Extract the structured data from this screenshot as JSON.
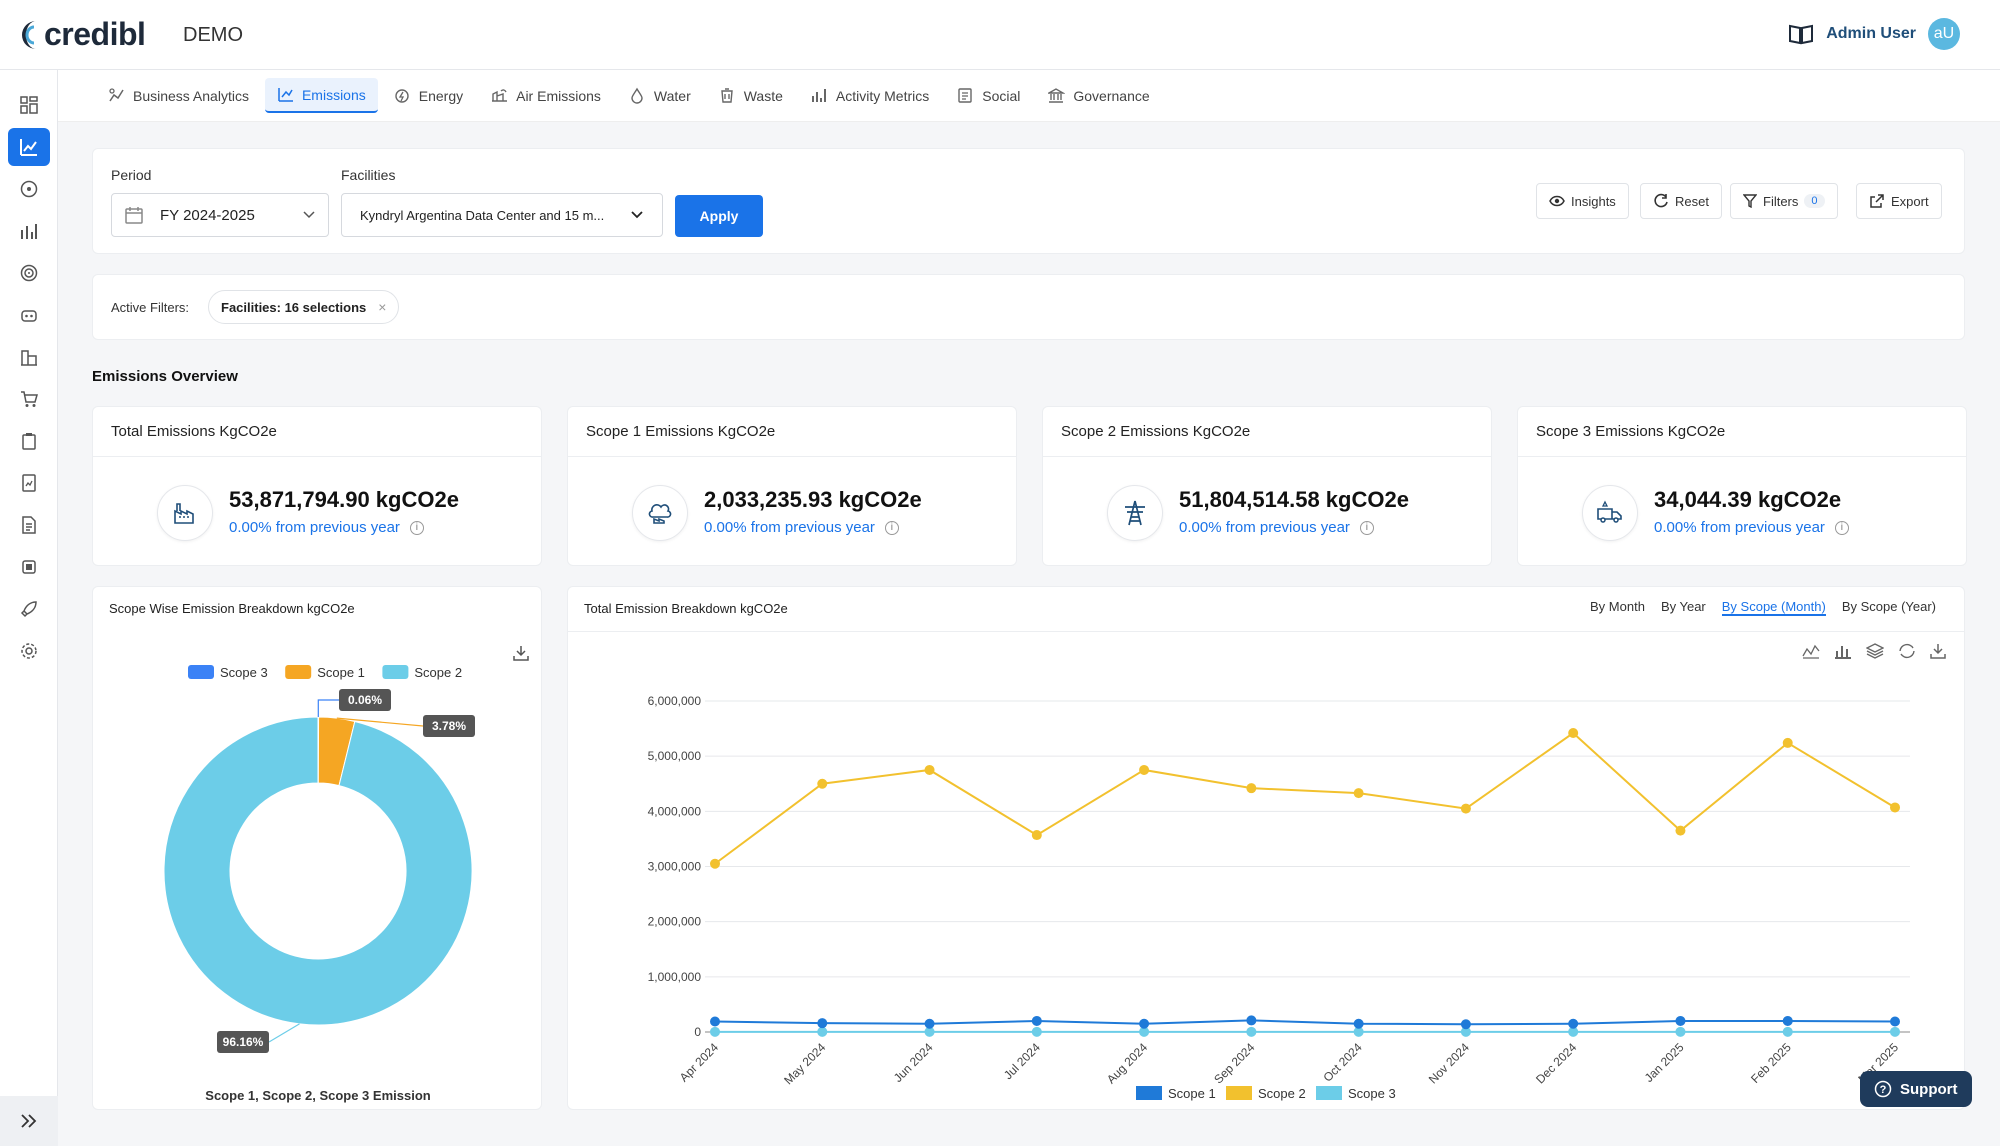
{
  "header": {
    "logo_text": "credibl",
    "env_label": "DEMO",
    "user_name": "Admin User",
    "avatar_initials": "aU"
  },
  "tabs": [
    {
      "label": "Business Analytics",
      "icon": "analytics-icon"
    },
    {
      "label": "Emissions",
      "icon": "emissions-icon",
      "active": true
    },
    {
      "label": "Energy",
      "icon": "energy-icon"
    },
    {
      "label": "Air Emissions",
      "icon": "air-icon"
    },
    {
      "label": "Water",
      "icon": "water-icon"
    },
    {
      "label": "Waste",
      "icon": "waste-icon"
    },
    {
      "label": "Activity Metrics",
      "icon": "activity-icon"
    },
    {
      "label": "Social",
      "icon": "social-icon"
    },
    {
      "label": "Governance",
      "icon": "governance-icon"
    }
  ],
  "filters": {
    "period_label": "Period",
    "period_value": "FY 2024-2025",
    "facilities_label": "Facilities",
    "facilities_value": "Kyndryl Argentina Data Center and 15 m...",
    "apply_label": "Apply",
    "insights_label": "Insights",
    "reset_label": "Reset",
    "filters_label": "Filters",
    "filters_count": "0",
    "export_label": "Export",
    "active_filters_label": "Active Filters:",
    "active_chip": "Facilities: 16 selections"
  },
  "overview": {
    "title": "Emissions Overview",
    "cards": [
      {
        "title": "Total Emissions KgCO2e",
        "value": "53,871,794.90 kgCO2e",
        "change": "0.00% from previous year",
        "icon": "factory-icon"
      },
      {
        "title": "Scope 1 Emissions KgCO2e",
        "value": "2,033,235.93 kgCO2e",
        "change": "0.00% from previous year",
        "icon": "cloud-factory-icon"
      },
      {
        "title": "Scope 2 Emissions KgCO2e",
        "value": "51,804,514.58 kgCO2e",
        "change": "0.00% from previous year",
        "icon": "power-tower-icon"
      },
      {
        "title": "Scope 3 Emissions KgCO2e",
        "value": "34,044.39 kgCO2e",
        "change": "0.00% from previous year",
        "icon": "truck-icon"
      }
    ]
  },
  "donut": {
    "title": "Scope Wise Emission Breakdown kgCO2e",
    "footer": "Scope 1, Scope 2, Scope 3 Emission",
    "legend": [
      "Scope 3",
      "Scope 1",
      "Scope 2"
    ],
    "labels": [
      "0.06%",
      "3.78%",
      "96.16%"
    ]
  },
  "line": {
    "title": "Total Emission Breakdown kgCO2e",
    "range_options": [
      "By Month",
      "By Year",
      "By Scope (Month)",
      "By Scope (Year)"
    ],
    "legend": [
      "Scope 1",
      "Scope 2",
      "Scope 3"
    ]
  },
  "support_label": "Support",
  "chart_data": [
    {
      "type": "pie",
      "title": "Scope Wise Emission Breakdown kgCO2e",
      "xlabel": "Scope 1, Scope 2, Scope 3 Emission",
      "categories": [
        "Scope 3",
        "Scope 1",
        "Scope 2"
      ],
      "values": [
        0.06,
        3.78,
        96.16
      ],
      "colors": [
        "#3b82f6",
        "#f5a623",
        "#6ccde8"
      ],
      "donut": true,
      "legend": "top"
    },
    {
      "type": "line",
      "title": "Total Emission Breakdown kgCO2e",
      "x": [
        "Apr 2024",
        "May 2024",
        "Jun 2024",
        "Jul 2024",
        "Aug 2024",
        "Sep 2024",
        "Oct 2024",
        "Nov 2024",
        "Dec 2024",
        "Jan 2025",
        "Feb 2025",
        "Mar 2025"
      ],
      "ylim": [
        0,
        6000000
      ],
      "yticks": [
        "0",
        "1,000,000",
        "2,000,000",
        "3,000,000",
        "4,000,000",
        "5,000,000",
        "6,000,000"
      ],
      "grid": true,
      "legend": "bottom",
      "series": [
        {
          "name": "Scope 1",
          "color": "#1f7ad8",
          "values": [
            190000,
            160000,
            150000,
            200000,
            150000,
            210000,
            150000,
            140000,
            150000,
            200000,
            200000,
            190000
          ]
        },
        {
          "name": "Scope 2",
          "color": "#f2c12e",
          "values": [
            3050000,
            4500000,
            4750000,
            3570000,
            4750000,
            4420000,
            4330000,
            4050000,
            5420000,
            3650000,
            5240000,
            4070000
          ]
        },
        {
          "name": "Scope 3",
          "color": "#6ccde8",
          "values": [
            3000,
            3000,
            3000,
            3000,
            3000,
            3000,
            3000,
            3000,
            3000,
            3000,
            3000,
            3000
          ]
        }
      ]
    }
  ]
}
